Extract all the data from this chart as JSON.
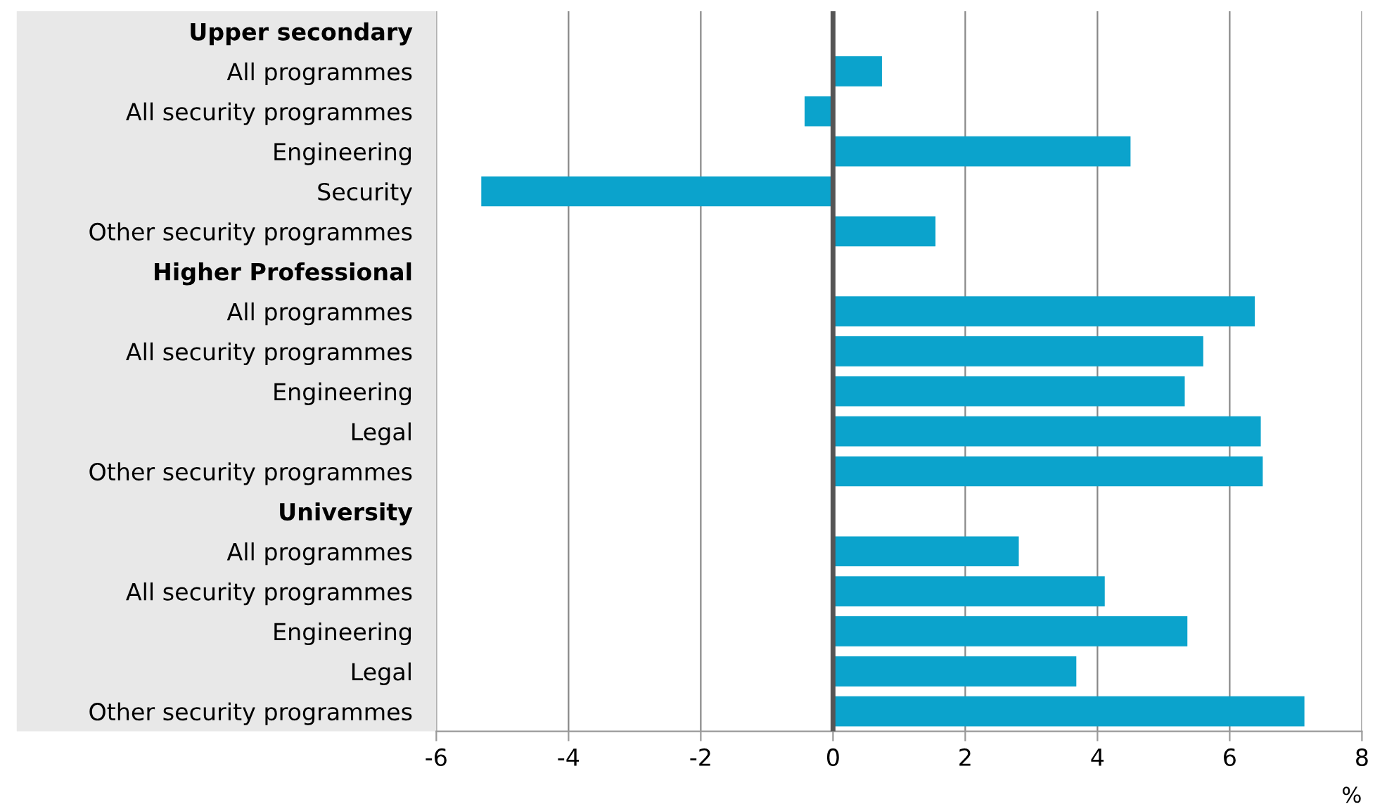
{
  "chart_data": {
    "type": "bar",
    "orientation": "horizontal",
    "categories": [
      "Upper secondary",
      "All programmes",
      "All security programmes",
      "Engineering",
      "Security",
      "Other security programmes",
      "Higher Professional",
      "All programmes",
      "All security programmes",
      "Engineering",
      "Legal",
      "Other security programmes",
      "University",
      "All programmes",
      "All security programmes",
      "Engineering",
      "Legal",
      "Other security programmes"
    ],
    "values": [
      null,
      0.74,
      -0.43,
      4.5,
      -5.32,
      1.55,
      null,
      6.38,
      5.6,
      5.32,
      6.47,
      6.5,
      null,
      2.81,
      4.11,
      5.36,
      3.68,
      7.13
    ],
    "color": "#0ba3cc",
    "xlabel": "%",
    "xlim": [
      -6,
      8
    ],
    "xticks": [
      -6,
      -4,
      -2,
      0,
      2,
      4,
      6,
      8
    ],
    "grid": "x",
    "legend": false,
    "ref_lines": [
      {
        "axis": "x",
        "value": 0,
        "color": "#555555"
      }
    ]
  }
}
